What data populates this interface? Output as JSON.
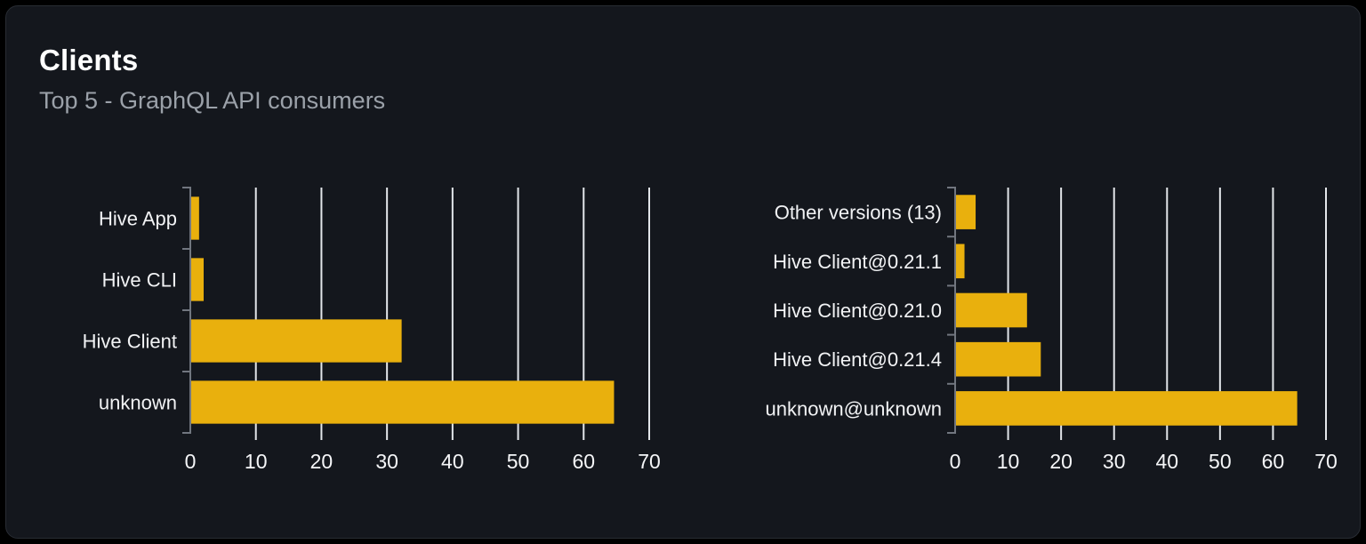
{
  "card": {
    "title": "Clients",
    "subtitle": "Top 5 - GraphQL API consumers"
  },
  "theme": {
    "page_bg": "#000000",
    "card_bg": "#14171d",
    "card_border": "#282c33",
    "title_color": "#ffffff",
    "subtitle_color": "#9ba1a9",
    "bar_color": "#e9b00d",
    "axis_color": "#71767f",
    "gridline_color": "#e3e6ea",
    "tick_label_color": "#f5f6f8",
    "category_label_color": "#f2f3f5"
  },
  "chart_data": [
    {
      "type": "bar",
      "orientation": "horizontal",
      "name": "clients-by-name",
      "title": "",
      "categories": [
        "Hive App",
        "Hive CLI",
        "Hive Client",
        "unknown"
      ],
      "values": [
        1.2,
        1.9,
        32.1,
        64.5
      ],
      "xlim": [
        0,
        70
      ],
      "xticks": [
        0,
        10,
        20,
        30,
        40,
        50,
        60,
        70
      ],
      "xlabel": "",
      "ylabel": "",
      "grid": true,
      "legend": false
    },
    {
      "type": "bar",
      "orientation": "horizontal",
      "name": "clients-by-version",
      "title": "",
      "categories": [
        "Other versions (13)",
        "Hive Client@0.21.1",
        "Hive Client@0.21.0",
        "Hive Client@0.21.4",
        "unknown@unknown"
      ],
      "values": [
        3.7,
        1.6,
        13.4,
        16.0,
        64.4
      ],
      "xlim": [
        0,
        70
      ],
      "xticks": [
        0,
        10,
        20,
        30,
        40,
        50,
        60,
        70
      ],
      "xlabel": "",
      "ylabel": "",
      "grid": true,
      "legend": false
    }
  ]
}
